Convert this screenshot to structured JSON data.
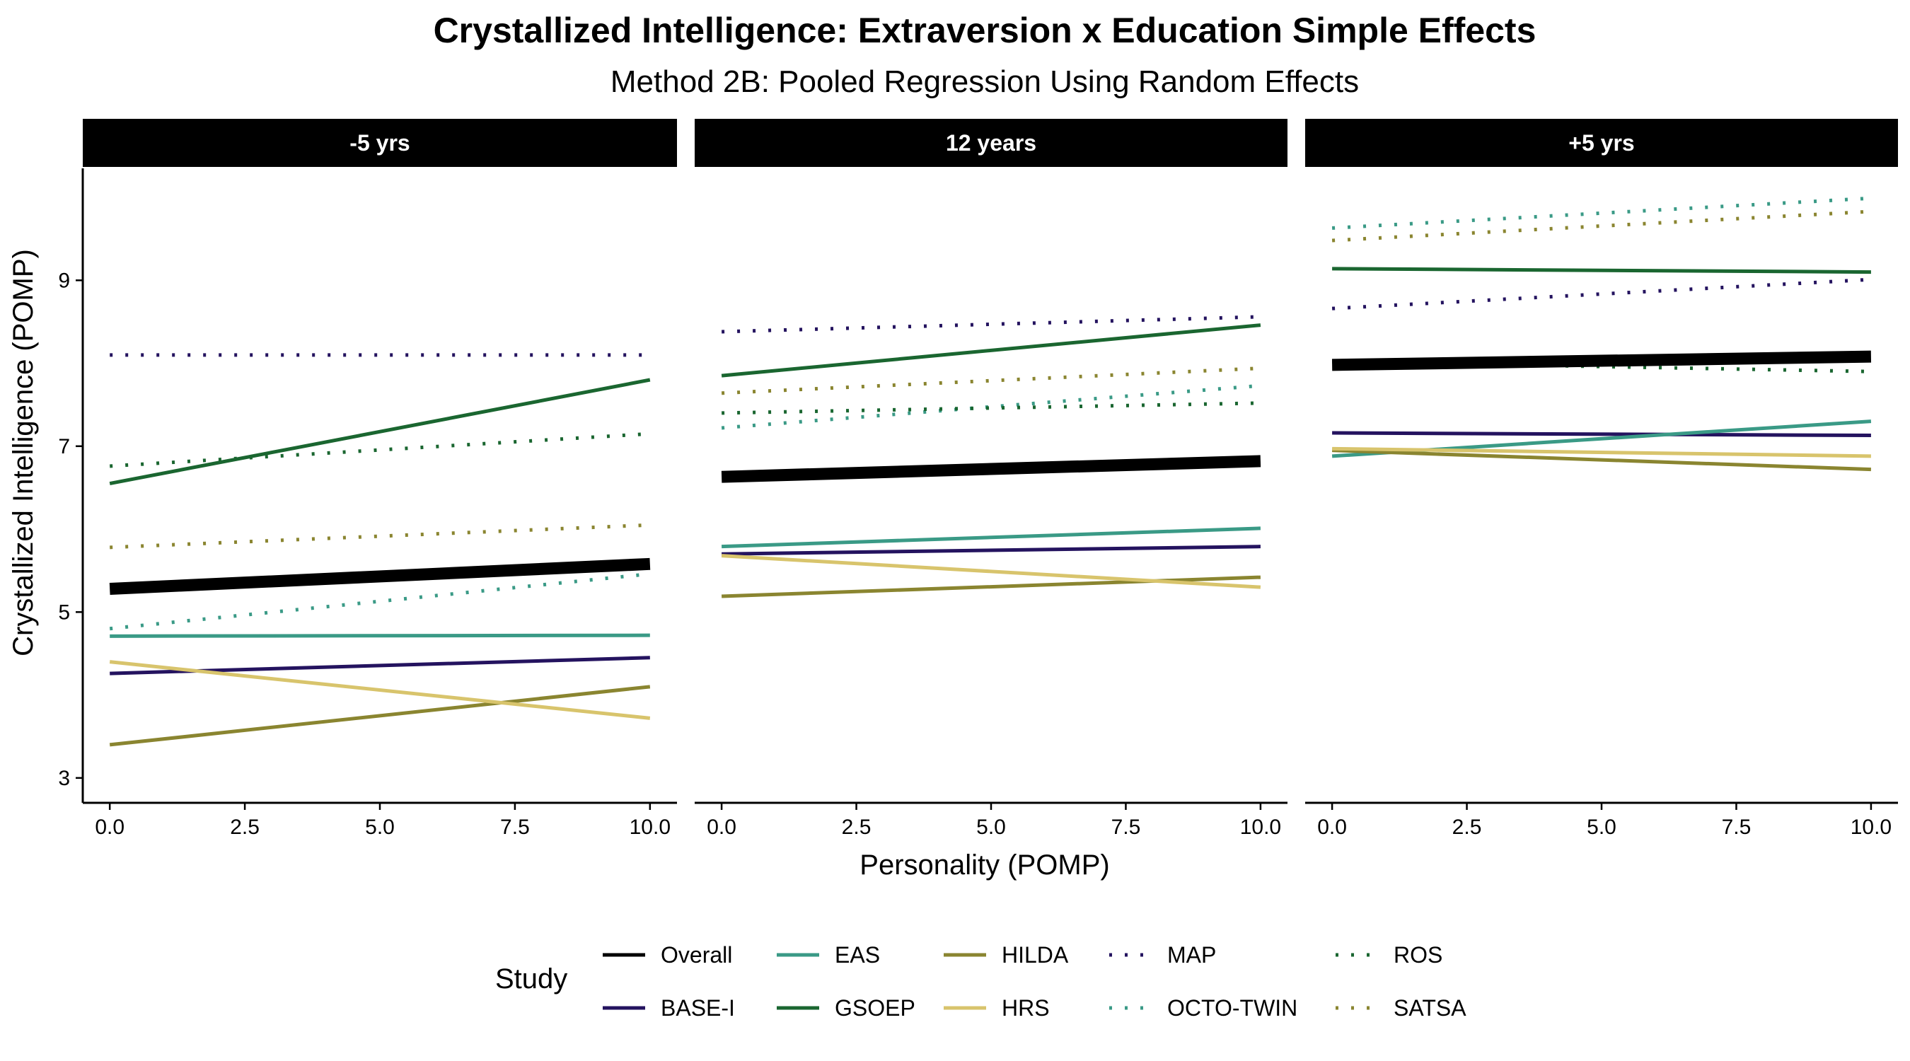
{
  "chart_data": {
    "type": "line",
    "title": "Crystallized Intelligence: Extraversion x Education Simple Effects",
    "subtitle": "Method 2B: Pooled Regression Using Random Effects",
    "xlabel": "Personality (POMP)",
    "ylabel": "Crystallized Intelligence (POMP)",
    "xlim": [
      -0.5,
      10.5
    ],
    "ylim": [
      2.7,
      10.35
    ],
    "xticks": [
      "0.0",
      "2.5",
      "5.0",
      "7.5",
      "10.0"
    ],
    "yticks": [
      "3",
      "5",
      "7",
      "9"
    ],
    "x": [
      0,
      10
    ],
    "legend_title": "Study",
    "legend_position": "bottom",
    "grid": false,
    "panels": [
      {
        "label": "-5 yrs",
        "series": [
          {
            "name": "Overall",
            "values": [
              5.28,
              5.58
            ]
          },
          {
            "name": "BASE-I",
            "values": [
              4.26,
              4.45
            ]
          },
          {
            "name": "EAS",
            "values": [
              4.71,
              4.72
            ]
          },
          {
            "name": "GSOEP",
            "values": [
              6.55,
              7.8
            ]
          },
          {
            "name": "HILDA",
            "values": [
              3.4,
              4.1
            ]
          },
          {
            "name": "HRS",
            "values": [
              4.4,
              3.72
            ]
          },
          {
            "name": "MAP",
            "values": [
              8.1,
              8.1
            ]
          },
          {
            "name": "OCTO-TWIN",
            "values": [
              4.8,
              5.46
            ]
          },
          {
            "name": "ROS",
            "values": [
              6.76,
              7.15
            ]
          },
          {
            "name": "SATSA",
            "values": [
              5.78,
              6.05
            ]
          }
        ]
      },
      {
        "label": "12 years",
        "series": [
          {
            "name": "Overall",
            "values": [
              6.63,
              6.82
            ]
          },
          {
            "name": "BASE-I",
            "values": [
              5.7,
              5.79
            ]
          },
          {
            "name": "EAS",
            "values": [
              5.79,
              6.01
            ]
          },
          {
            "name": "GSOEP",
            "values": [
              7.85,
              8.46
            ]
          },
          {
            "name": "HILDA",
            "values": [
              5.19,
              5.42
            ]
          },
          {
            "name": "HRS",
            "values": [
              5.68,
              5.3
            ]
          },
          {
            "name": "MAP",
            "values": [
              8.38,
              8.56
            ]
          },
          {
            "name": "OCTO-TWIN",
            "values": [
              7.22,
              7.73
            ]
          },
          {
            "name": "ROS",
            "values": [
              7.4,
              7.52
            ]
          },
          {
            "name": "SATSA",
            "values": [
              7.64,
              7.94
            ]
          }
        ]
      },
      {
        "label": "+5 yrs",
        "series": [
          {
            "name": "Overall",
            "values": [
              7.98,
              8.08
            ]
          },
          {
            "name": "BASE-I",
            "values": [
              7.16,
              7.13
            ]
          },
          {
            "name": "EAS",
            "values": [
              6.88,
              7.3
            ]
          },
          {
            "name": "GSOEP",
            "values": [
              9.14,
              9.1
            ]
          },
          {
            "name": "HILDA",
            "values": [
              6.95,
              6.72
            ]
          },
          {
            "name": "HRS",
            "values": [
              6.97,
              6.88
            ]
          },
          {
            "name": "MAP",
            "values": [
              8.66,
              9.01
            ]
          },
          {
            "name": "OCTO-TWIN",
            "values": [
              9.63,
              9.99
            ]
          },
          {
            "name": "ROS",
            "values": [
              8.02,
              7.9
            ]
          },
          {
            "name": "SATSA",
            "values": [
              9.48,
              9.83
            ]
          }
        ]
      }
    ],
    "styles": [
      {
        "name": "Overall",
        "color": "#000000",
        "dash": "solid",
        "width": "thick"
      },
      {
        "name": "BASE-I",
        "color": "#24135F",
        "dash": "solid",
        "width": "normal"
      },
      {
        "name": "EAS",
        "color": "#3A9A86",
        "dash": "solid",
        "width": "normal"
      },
      {
        "name": "GSOEP",
        "color": "#1A6630",
        "dash": "solid",
        "width": "normal"
      },
      {
        "name": "HILDA",
        "color": "#8A8530",
        "dash": "solid",
        "width": "normal"
      },
      {
        "name": "HRS",
        "color": "#D8C46C",
        "dash": "solid",
        "width": "normal"
      },
      {
        "name": "MAP",
        "color": "#24135F",
        "dash": "dotted",
        "width": "normal"
      },
      {
        "name": "OCTO-TWIN",
        "color": "#3A9A86",
        "dash": "dotted",
        "width": "normal"
      },
      {
        "name": "ROS",
        "color": "#1A6630",
        "dash": "dotted",
        "width": "normal"
      },
      {
        "name": "SATSA",
        "color": "#8A8530",
        "dash": "dotted",
        "width": "normal"
      }
    ]
  }
}
